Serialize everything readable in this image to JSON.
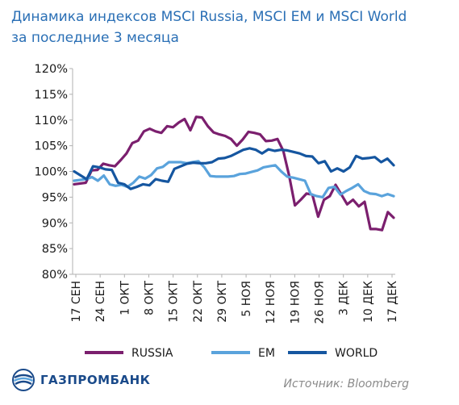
{
  "title_line1": "Динамика индексов MSCI Russia, MSCI EM и MSCI World",
  "title_line2": "за последние 3 месяца",
  "source": "Источник: Bloomberg",
  "logo_text": "ГАЗПРОМБАНК",
  "colors": {
    "title": "#2a6fb5",
    "russia": "#7b1f6e",
    "em": "#5aa3dc",
    "world": "#1556a0",
    "logo": "#1a4a8a"
  },
  "chart_data": {
    "type": "line",
    "ylim": [
      80,
      120
    ],
    "yticks": [
      "80%",
      "85%",
      "90%",
      "95%",
      "100%",
      "105%",
      "110%",
      "115%",
      "120%"
    ],
    "xticks": [
      "17 СЕН",
      "24 СЕН",
      "1 ОКТ",
      "8 ОКТ",
      "15 ОКТ",
      "22 ОКТ",
      "29 ОКТ",
      "5 НОЯ",
      "12 НОЯ",
      "19 НОЯ",
      "26 НОЯ",
      "3 ДЕК",
      "10 ДЕК",
      "17 ДЕК"
    ],
    "x_range_days": [
      0,
      91
    ],
    "series": [
      {
        "name": "RUSSIA",
        "color": "#7b1f6e",
        "points": [
          [
            0,
            97.5
          ],
          [
            2,
            97.8
          ],
          [
            3,
            100.2
          ],
          [
            4,
            100.3
          ],
          [
            5,
            101.5
          ],
          [
            6,
            101.2
          ],
          [
            7,
            101.0
          ],
          [
            8,
            102.2
          ],
          [
            9,
            103.5
          ],
          [
            10,
            105.5
          ],
          [
            11,
            106.0
          ],
          [
            12,
            107.8
          ],
          [
            13,
            108.3
          ],
          [
            14,
            107.8
          ],
          [
            15,
            107.5
          ],
          [
            16,
            108.8
          ],
          [
            17,
            108.6
          ],
          [
            18,
            109.5
          ],
          [
            19,
            110.2
          ],
          [
            20,
            108.0
          ],
          [
            21,
            110.6
          ],
          [
            22,
            110.5
          ],
          [
            23,
            108.8
          ],
          [
            24,
            107.6
          ],
          [
            25,
            107.2
          ],
          [
            26,
            106.9
          ],
          [
            27,
            106.3
          ],
          [
            28,
            105.0
          ],
          [
            29,
            106.2
          ],
          [
            30,
            107.7
          ],
          [
            31,
            107.5
          ],
          [
            32,
            107.2
          ],
          [
            33,
            105.9
          ],
          [
            34,
            106.0
          ],
          [
            35,
            106.3
          ],
          [
            36,
            104.0
          ],
          [
            37,
            99.2
          ],
          [
            38,
            93.4
          ],
          [
            39,
            94.5
          ],
          [
            40,
            95.7
          ],
          [
            41,
            95.5
          ],
          [
            42,
            91.2
          ],
          [
            43,
            94.5
          ],
          [
            44,
            95.2
          ],
          [
            45,
            97.4
          ],
          [
            46,
            95.5
          ],
          [
            47,
            93.6
          ],
          [
            48,
            94.5
          ],
          [
            49,
            93.2
          ],
          [
            50,
            94.1
          ],
          [
            51,
            88.8
          ],
          [
            52,
            88.8
          ],
          [
            53,
            88.6
          ],
          [
            54,
            92.1
          ],
          [
            55,
            91.0
          ]
        ],
        "day_scale": 1.6545
      },
      {
        "name": "EM",
        "color": "#5aa3dc",
        "points": [
          [
            0,
            98.2
          ],
          [
            2,
            98.5
          ],
          [
            3,
            98.9
          ],
          [
            4,
            98.2
          ],
          [
            5,
            99.2
          ],
          [
            6,
            97.5
          ],
          [
            7,
            97.2
          ],
          [
            8,
            97.4
          ],
          [
            9,
            97.0
          ],
          [
            10,
            97.8
          ],
          [
            11,
            99.0
          ],
          [
            12,
            98.6
          ],
          [
            13,
            99.3
          ],
          [
            14,
            100.6
          ],
          [
            15,
            100.9
          ],
          [
            16,
            101.8
          ],
          [
            17,
            101.8
          ],
          [
            18,
            101.8
          ],
          [
            19,
            101.6
          ],
          [
            20,
            101.8
          ],
          [
            21,
            102.0
          ],
          [
            22,
            100.8
          ],
          [
            23,
            99.1
          ],
          [
            24,
            99.0
          ],
          [
            25,
            99.0
          ],
          [
            26,
            99.0
          ],
          [
            27,
            99.1
          ],
          [
            28,
            99.5
          ],
          [
            29,
            99.6
          ],
          [
            30,
            99.9
          ],
          [
            31,
            100.2
          ],
          [
            32,
            100.8
          ],
          [
            33,
            101.0
          ],
          [
            34,
            101.2
          ],
          [
            35,
            100.0
          ],
          [
            36,
            99.0
          ],
          [
            37,
            98.8
          ],
          [
            38,
            98.5
          ],
          [
            39,
            98.2
          ],
          [
            40,
            95.6
          ],
          [
            41,
            95.2
          ],
          [
            42,
            95.0
          ],
          [
            43,
            96.8
          ],
          [
            44,
            97.0
          ],
          [
            45,
            95.5
          ],
          [
            46,
            96.2
          ],
          [
            47,
            96.8
          ],
          [
            48,
            97.5
          ],
          [
            49,
            96.2
          ],
          [
            50,
            95.7
          ],
          [
            51,
            95.6
          ],
          [
            52,
            95.2
          ],
          [
            53,
            95.6
          ],
          [
            54,
            95.2
          ]
        ],
        "day_scale": 1.685
      },
      {
        "name": "WORLD",
        "color": "#1556a0",
        "points": [
          [
            0,
            100.0
          ],
          [
            2,
            98.5
          ],
          [
            3,
            101.0
          ],
          [
            4,
            100.8
          ],
          [
            5,
            100.4
          ],
          [
            6,
            100.3
          ],
          [
            7,
            97.8
          ],
          [
            8,
            97.5
          ],
          [
            9,
            96.6
          ],
          [
            10,
            97.0
          ],
          [
            11,
            97.5
          ],
          [
            12,
            97.3
          ],
          [
            13,
            98.5
          ],
          [
            14,
            98.2
          ],
          [
            15,
            98.0
          ],
          [
            16,
            100.5
          ],
          [
            17,
            101.0
          ],
          [
            18,
            101.5
          ],
          [
            19,
            101.7
          ],
          [
            20,
            101.6
          ],
          [
            21,
            101.6
          ],
          [
            22,
            101.8
          ],
          [
            23,
            102.5
          ],
          [
            24,
            102.6
          ],
          [
            25,
            103.0
          ],
          [
            26,
            103.6
          ],
          [
            27,
            104.2
          ],
          [
            28,
            104.5
          ],
          [
            29,
            104.2
          ],
          [
            30,
            103.5
          ],
          [
            31,
            104.3
          ],
          [
            32,
            104.0
          ],
          [
            33,
            104.2
          ],
          [
            34,
            104.1
          ],
          [
            35,
            103.8
          ],
          [
            36,
            103.5
          ],
          [
            37,
            103.0
          ],
          [
            38,
            102.9
          ],
          [
            39,
            101.6
          ],
          [
            40,
            102.0
          ],
          [
            41,
            100.0
          ],
          [
            42,
            100.6
          ],
          [
            43,
            100.0
          ],
          [
            44,
            100.8
          ],
          [
            45,
            103.0
          ],
          [
            46,
            102.5
          ],
          [
            47,
            102.6
          ],
          [
            48,
            102.8
          ],
          [
            49,
            101.8
          ],
          [
            50,
            102.5
          ],
          [
            51,
            101.2
          ]
        ],
        "day_scale": 1.7843
      }
    ],
    "legend": [
      "RUSSIA",
      "EM",
      "WORLD"
    ],
    "legend_position": "bottom"
  }
}
